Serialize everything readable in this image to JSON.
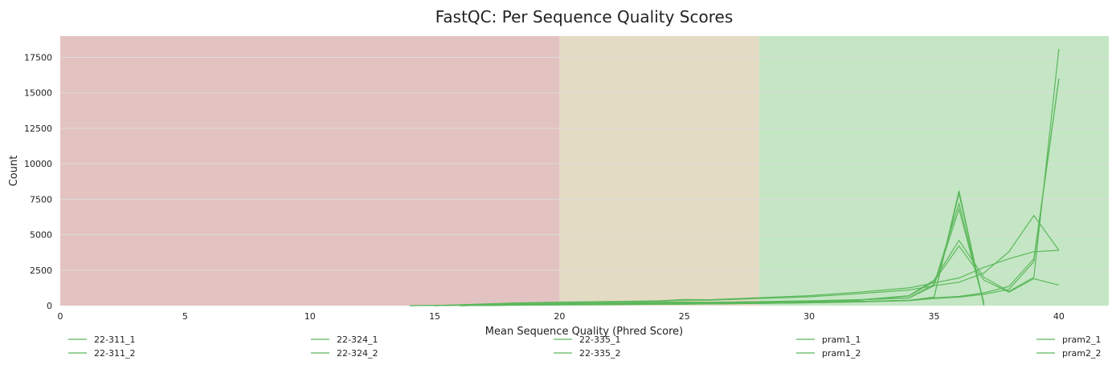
{
  "chart_data": {
    "type": "line",
    "title": "FastQC: Per Sequence Quality Scores",
    "xlabel": "Mean Sequence Quality (Phred Score)",
    "ylabel": "Count",
    "xlim": [
      0,
      42
    ],
    "ylim": [
      0,
      19000
    ],
    "xticks": [
      0,
      5,
      10,
      15,
      20,
      25,
      30,
      35,
      40
    ],
    "yticks": [
      0,
      2500,
      5000,
      7500,
      10000,
      12500,
      15000,
      17500
    ],
    "grid": true,
    "legend_placement": "bottom",
    "colors": {
      "fail_zone": "#e3c2c2",
      "warn_zone": "#e4dbc4",
      "pass_zone": "#c4e6c4",
      "line": "#5cb85c"
    },
    "zones": [
      {
        "from": 0,
        "to": 20,
        "status": "fail"
      },
      {
        "from": 20,
        "to": 28,
        "status": "warn"
      },
      {
        "from": 28,
        "to": 42,
        "status": "pass"
      }
    ],
    "series": [
      {
        "name": "22-311_1",
        "x": [
          14,
          16,
          18,
          20,
          22,
          24,
          25,
          26,
          28,
          30,
          32,
          34,
          35,
          36,
          37
        ],
        "y": [
          0,
          40,
          80,
          120,
          150,
          180,
          200,
          190,
          220,
          260,
          300,
          380,
          600,
          8100,
          0
        ]
      },
      {
        "name": "22-311_2",
        "x": [
          14,
          16,
          18,
          20,
          22,
          24,
          25,
          26,
          28,
          30,
          32,
          34,
          35,
          36,
          37
        ],
        "y": [
          0,
          30,
          70,
          110,
          140,
          170,
          190,
          180,
          210,
          250,
          290,
          360,
          580,
          7900,
          0
        ]
      },
      {
        "name": "22-324_1",
        "x": [
          15,
          18,
          20,
          22,
          24,
          25,
          26,
          28,
          30,
          32,
          34,
          35,
          36,
          37
        ],
        "y": [
          0,
          90,
          150,
          190,
          230,
          260,
          240,
          280,
          340,
          420,
          550,
          1500,
          7200,
          200
        ]
      },
      {
        "name": "22-324_2",
        "x": [
          15,
          18,
          20,
          22,
          24,
          25,
          26,
          28,
          30,
          32,
          34,
          35,
          36,
          37
        ],
        "y": [
          0,
          80,
          140,
          180,
          220,
          250,
          230,
          270,
          330,
          410,
          540,
          1400,
          6800,
          150
        ]
      },
      {
        "name": "22-335_1",
        "x": [
          15,
          18,
          20,
          22,
          24,
          25,
          26,
          28,
          30,
          32,
          34,
          35,
          36,
          37,
          38,
          39,
          40
        ],
        "y": [
          0,
          180,
          250,
          290,
          340,
          430,
          420,
          560,
          700,
          950,
          1250,
          1600,
          1950,
          2700,
          3300,
          3800,
          3900
        ]
      },
      {
        "name": "22-335_2",
        "x": [
          15,
          18,
          20,
          22,
          24,
          25,
          26,
          28,
          30,
          32,
          34,
          35,
          36,
          37,
          38,
          39,
          40
        ],
        "y": [
          0,
          150,
          220,
          260,
          300,
          390,
          380,
          500,
          620,
          850,
          1100,
          1400,
          1650,
          2300,
          3800,
          6350,
          3900
        ]
      },
      {
        "name": "pram1_1",
        "x": [
          16,
          20,
          25,
          28,
          30,
          32,
          34,
          35,
          36,
          37,
          38,
          39,
          40
        ],
        "y": [
          0,
          80,
          140,
          200,
          280,
          400,
          700,
          1800,
          4600,
          2000,
          1000,
          2000,
          18100
        ]
      },
      {
        "name": "pram1_2",
        "x": [
          16,
          20,
          25,
          28,
          30,
          32,
          34,
          35,
          36,
          37,
          38,
          39,
          40
        ],
        "y": [
          0,
          70,
          130,
          190,
          260,
          380,
          680,
          1700,
          4200,
          1800,
          950,
          1900,
          1450
        ]
      },
      {
        "name": "pram2_1",
        "x": [
          16,
          20,
          25,
          28,
          30,
          32,
          34,
          35,
          36,
          37,
          38,
          39,
          40
        ],
        "y": [
          0,
          60,
          110,
          160,
          210,
          280,
          380,
          550,
          650,
          900,
          1350,
          3300,
          16000
        ]
      },
      {
        "name": "pram2_2",
        "x": [
          16,
          20,
          25,
          28,
          30,
          32,
          34,
          35,
          36,
          37,
          38,
          39,
          40
        ],
        "y": [
          0,
          50,
          100,
          150,
          200,
          260,
          350,
          500,
          600,
          800,
          1150,
          3100,
          16000
        ]
      }
    ]
  }
}
